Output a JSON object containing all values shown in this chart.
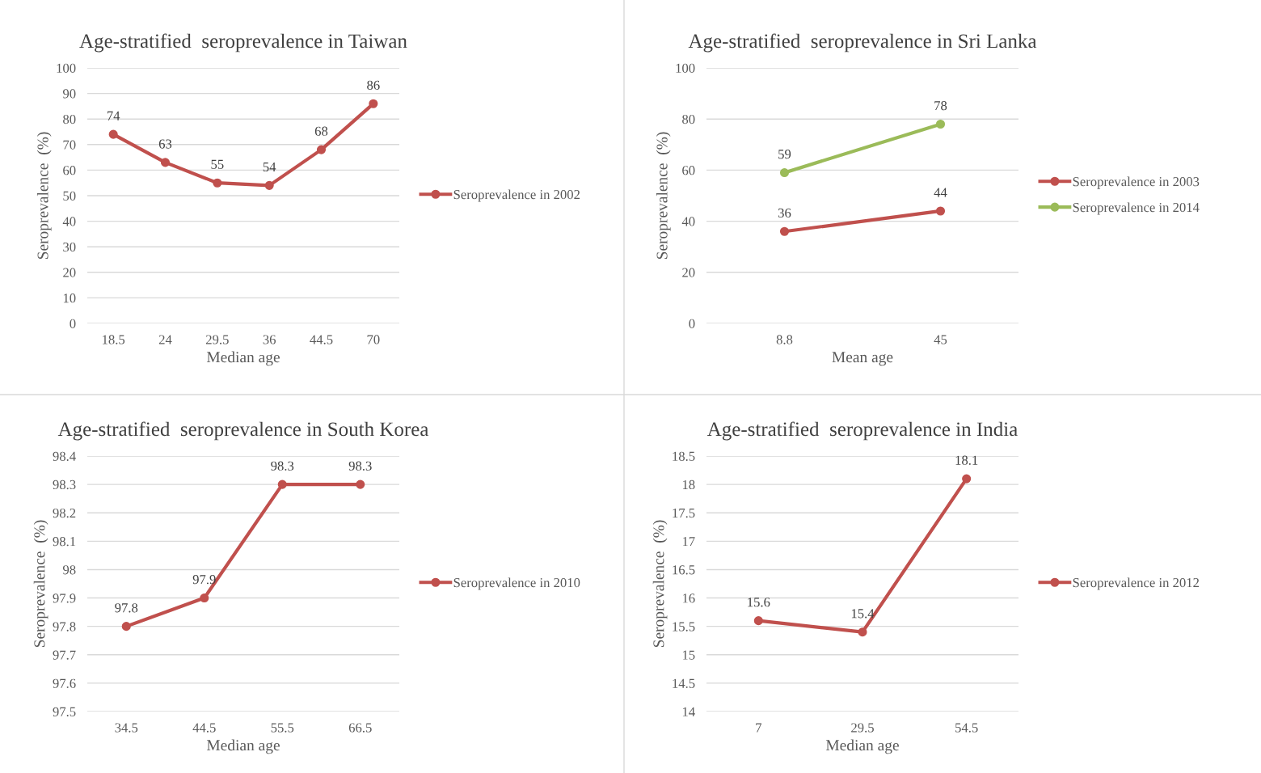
{
  "chart_data": [
    {
      "type": "line",
      "title": "Age-stratified  seroprevalence in Taiwan",
      "xlabel": "Median age",
      "ylabel": "Seroprevalence  (%)",
      "categories": [
        "18.5",
        "24",
        "29.5",
        "36",
        "44.5",
        "70"
      ],
      "series": [
        {
          "name": "Seroprevalence in 2002",
          "color": "#c0504d",
          "values": [
            74,
            63,
            55,
            54,
            68,
            86
          ]
        }
      ],
      "ylim": [
        0,
        100
      ],
      "yticks": [
        0,
        10,
        20,
        30,
        40,
        50,
        60,
        70,
        80,
        90,
        100
      ],
      "grid": "y",
      "legend": "right",
      "marker": "circle",
      "data_labels": true
    },
    {
      "type": "line",
      "title": "Age-stratified  seroprevalence in Sri Lanka",
      "xlabel": "Mean age",
      "ylabel": "Seroprevalence  (%)",
      "categories": [
        "8.8",
        "45"
      ],
      "series": [
        {
          "name": "Seroprevalence in 2003",
          "color": "#c0504d",
          "values": [
            36,
            44
          ]
        },
        {
          "name": "Seroprevalence in 2014",
          "color": "#9bbb59",
          "values": [
            59,
            78
          ]
        }
      ],
      "ylim": [
        0,
        100
      ],
      "yticks": [
        0,
        20,
        40,
        60,
        80,
        100
      ],
      "grid": "y",
      "legend": "right",
      "marker": "circle",
      "data_labels": true
    },
    {
      "type": "line",
      "title": "Age-stratified  seroprevalence in South Korea",
      "xlabel": "Median age",
      "ylabel": "Seroprevalence  (%)",
      "categories": [
        "34.5",
        "44.5",
        "55.5",
        "66.5"
      ],
      "series": [
        {
          "name": "Seroprevalence in 2010",
          "color": "#c0504d",
          "values": [
            97.8,
            97.9,
            98.3,
            98.3
          ]
        }
      ],
      "ylim": [
        97.5,
        98.4
      ],
      "yticks": [
        97.5,
        97.6,
        97.7,
        97.8,
        97.9,
        98,
        98.1,
        98.2,
        98.3,
        98.4
      ],
      "grid": "y",
      "legend": "right",
      "marker": "circle",
      "data_labels": true
    },
    {
      "type": "line",
      "title": "Age-stratified  seroprevalence in India",
      "xlabel": "Median age",
      "ylabel": "Seroprevalence  (%)",
      "categories": [
        "7",
        "29.5",
        "54.5"
      ],
      "series": [
        {
          "name": "Seroprevalence in 2012",
          "color": "#c0504d",
          "values": [
            15.6,
            15.4,
            18.1
          ]
        }
      ],
      "ylim": [
        14,
        18.5
      ],
      "yticks": [
        14,
        14.5,
        15,
        15.5,
        16,
        16.5,
        17,
        17.5,
        18,
        18.5
      ],
      "grid": "y",
      "legend": "right",
      "marker": "circle",
      "data_labels": true
    }
  ]
}
